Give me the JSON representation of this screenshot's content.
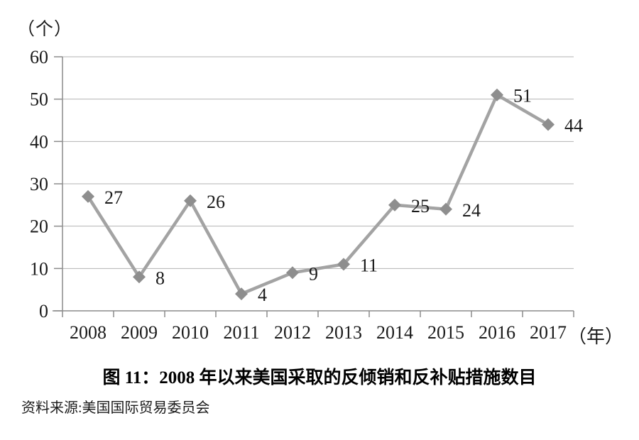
{
  "caption": {
    "title": "图 11：2008 年以来美国采取的反倾销和反补贴措施数目",
    "source": "资料来源:美国国际贸易委员会"
  },
  "chart_data": {
    "type": "line",
    "title": "图 11：2008 年以来美国采取的反倾销和反补贴措施数目",
    "categories": [
      "2008",
      "2009",
      "2010",
      "2011",
      "2012",
      "2013",
      "2014",
      "2015",
      "2016",
      "2017"
    ],
    "series": [
      {
        "name": "反倾销和反补贴措施数目",
        "values": [
          27,
          8,
          26,
          4,
          9,
          11,
          25,
          24,
          51,
          44
        ]
      }
    ],
    "y_unit_label": "（个）",
    "x_unit_label": "（年）",
    "ylim": [
      0,
      60
    ],
    "y_ticks": [
      0,
      10,
      20,
      30,
      40,
      50,
      60
    ],
    "grid": true,
    "legend": "none",
    "marker": "diamond",
    "data_labels": true,
    "colors": {
      "line": "#a3a3a3",
      "marker": "#8e8e8e",
      "grid": "#b3b3b3",
      "axis": "#8c8c8c",
      "text": "#1a1a1a"
    }
  }
}
